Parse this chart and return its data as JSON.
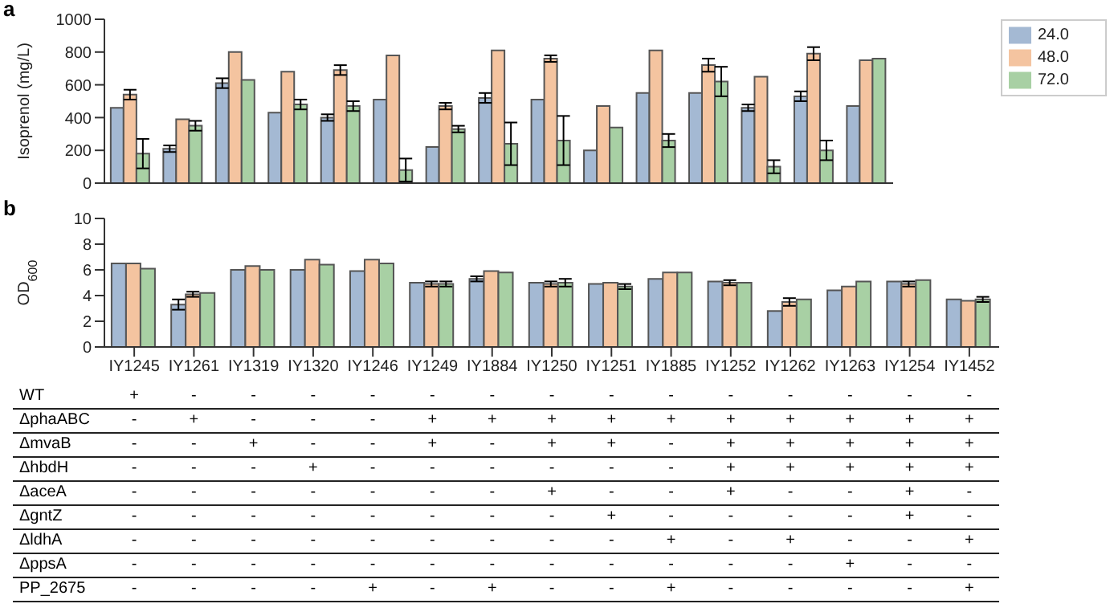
{
  "chart_data": [
    {
      "type": "bar",
      "title": "a",
      "ylabel": "Isoprenol (mg/L)",
      "categories": [
        null,
        null,
        null,
        null,
        null,
        null,
        null,
        null,
        null,
        null,
        null,
        null,
        null,
        null,
        null
      ],
      "ylim": [
        0,
        1000
      ],
      "yticks": [
        0,
        200,
        400,
        600,
        800,
        1000
      ],
      "tick_labels": "y",
      "legend": "top right",
      "grid": false,
      "series": [
        {
          "name": "24.0",
          "color": "#a4b9d3",
          "values": [
            460,
            210,
            610,
            430,
            400,
            510,
            220,
            520,
            510,
            200,
            550,
            550,
            460,
            530,
            470
          ],
          "errors": [
            null,
            20,
            30,
            null,
            20,
            null,
            null,
            30,
            null,
            null,
            null,
            null,
            20,
            30,
            null
          ]
        },
        {
          "name": "48.0",
          "color": "#f4c4a0",
          "values": [
            540,
            390,
            800,
            680,
            690,
            780,
            470,
            810,
            760,
            470,
            810,
            720,
            650,
            790,
            750
          ],
          "errors": [
            30,
            null,
            null,
            null,
            30,
            null,
            20,
            null,
            20,
            null,
            null,
            40,
            null,
            40,
            null
          ]
        },
        {
          "name": "72.0",
          "color": "#a8d0a4",
          "values": [
            180,
            350,
            630,
            480,
            470,
            80,
            330,
            240,
            260,
            340,
            260,
            620,
            100,
            200,
            760
          ],
          "errors": [
            90,
            30,
            null,
            30,
            30,
            70,
            20,
            130,
            150,
            null,
            40,
            90,
            40,
            60,
            null
          ]
        }
      ]
    },
    {
      "type": "bar",
      "title": "b",
      "ylabel": "OD$_{600}$",
      "categories": [
        "IY1245",
        "IY1261",
        "IY1319",
        "IY1320",
        "IY1246",
        "IY1249",
        "IY1884",
        "IY1250",
        "IY1251",
        "IY1885",
        "IY1252",
        "IY1262",
        "IY1263",
        "IY1254",
        "IY1452"
      ],
      "ylim": [
        0,
        10
      ],
      "yticks": [
        0,
        2,
        4,
        6,
        8,
        10
      ],
      "grid": false,
      "series": [
        {
          "name": "24.0",
          "color": "#a4b9d3",
          "values": [
            6.5,
            3.3,
            6.0,
            6.0,
            5.9,
            5.0,
            5.3,
            5.0,
            4.9,
            5.3,
            5.1,
            2.8,
            4.4,
            5.1,
            3.7
          ],
          "errors": [
            null,
            0.4,
            null,
            null,
            null,
            null,
            0.2,
            null,
            null,
            null,
            null,
            null,
            null,
            null,
            null
          ]
        },
        {
          "name": "48.0",
          "color": "#f4c4a0",
          "values": [
            6.5,
            4.1,
            6.3,
            6.8,
            6.8,
            4.9,
            5.9,
            4.9,
            5.0,
            5.8,
            5.0,
            3.5,
            4.7,
            4.9,
            3.6
          ],
          "errors": [
            null,
            0.2,
            null,
            null,
            null,
            0.2,
            null,
            0.2,
            null,
            null,
            0.2,
            0.3,
            null,
            0.2,
            null
          ]
        },
        {
          "name": "72.0",
          "color": "#a8d0a4",
          "values": [
            6.1,
            4.2,
            6.0,
            6.4,
            6.5,
            4.9,
            5.8,
            5.0,
            4.7,
            5.8,
            5.0,
            3.7,
            5.1,
            5.2,
            3.7
          ],
          "errors": [
            null,
            null,
            null,
            null,
            null,
            0.2,
            null,
            0.3,
            0.2,
            null,
            null,
            null,
            null,
            null,
            0.2
          ]
        }
      ]
    },
    {
      "type": "other",
      "categories": [
        null,
        null,
        null,
        null,
        null,
        null,
        null,
        null,
        null,
        null,
        null,
        null,
        null,
        null,
        null
      ],
      "y_categories": [
        "WT",
        "ΔphaABC",
        "ΔmvaB",
        "ΔhbdH",
        "ΔaceA",
        "ΔgntZ",
        "ΔldhA",
        "ΔppsA",
        "PP_2675"
      ],
      "cell_labels": [
        [
          "+",
          "-",
          "-",
          "-",
          "-",
          "-",
          "-",
          "-",
          "-",
          "-",
          "-",
          "-",
          "-",
          "-",
          "-"
        ],
        [
          "-",
          "+",
          "-",
          "-",
          "-",
          "+",
          "+",
          "+",
          "+",
          "+",
          "+",
          "+",
          "+",
          "+",
          "+"
        ],
        [
          "-",
          "-",
          "+",
          "-",
          "-",
          "+",
          "-",
          "+",
          "+",
          "-",
          "+",
          "+",
          "+",
          "+",
          "+"
        ],
        [
          "-",
          "-",
          "-",
          "+",
          "-",
          "-",
          "-",
          "-",
          "-",
          "-",
          "+",
          "+",
          "+",
          "+",
          "+"
        ],
        [
          "-",
          "-",
          "-",
          "-",
          "-",
          "-",
          "-",
          "+",
          "-",
          "-",
          "+",
          "-",
          "-",
          "+",
          "-"
        ],
        [
          "-",
          "-",
          "-",
          "-",
          "-",
          "-",
          "-",
          "-",
          "+",
          "-",
          "-",
          "-",
          "-",
          "+",
          "-"
        ],
        [
          "-",
          "-",
          "-",
          "-",
          "-",
          "-",
          "-",
          "-",
          "-",
          "+",
          "-",
          "+",
          "-",
          "-",
          "+"
        ],
        [
          "-",
          "-",
          "-",
          "-",
          "-",
          "-",
          "-",
          "-",
          "-",
          "-",
          "-",
          "-",
          "+",
          "-",
          "-"
        ],
        [
          "-",
          "-",
          "-",
          "-",
          "+",
          "-",
          "+",
          "-",
          "-",
          "+",
          "-",
          "-",
          "-",
          "-",
          "+"
        ]
      ]
    }
  ]
}
